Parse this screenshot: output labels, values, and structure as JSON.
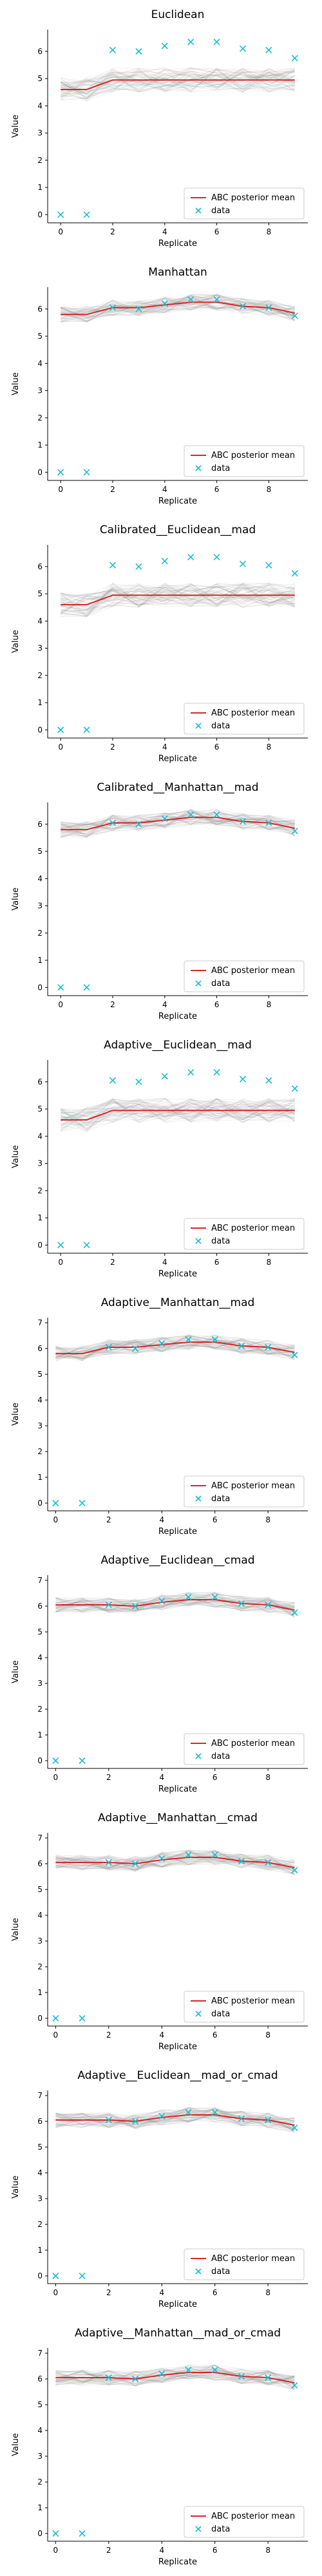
{
  "colors": {
    "mean_line": "#d62728",
    "data_marker": "#17becf",
    "bands": "#7f7f7f",
    "axis": "#000000",
    "legend_border": "#cccccc"
  },
  "legend": {
    "mean_label": "ABC posterior mean",
    "data_label": "data",
    "placement": "lower-right"
  },
  "chart_data": [
    {
      "type": "line",
      "title": "Euclidean",
      "xlabel": "Replicate",
      "ylabel": "Value",
      "xlim": [
        -0.5,
        9.5
      ],
      "ylim": [
        -0.3,
        6.8
      ],
      "xticks": [
        0,
        2,
        4,
        6,
        8
      ],
      "yticks": [
        0,
        1,
        2,
        3,
        4,
        5,
        6
      ],
      "x": [
        0,
        1,
        2,
        3,
        4,
        5,
        6,
        7,
        8,
        9
      ],
      "series": [
        {
          "name": "ABC posterior mean",
          "values": [
            4.6,
            4.6,
            4.95,
            4.95,
            4.95,
            4.95,
            4.95,
            4.95,
            4.95,
            4.95
          ],
          "spread": 0.45
        },
        {
          "name": "data",
          "values": [
            0,
            0,
            6.05,
            6.0,
            6.2,
            6.35,
            6.35,
            6.1,
            6.05,
            5.75
          ]
        }
      ]
    },
    {
      "type": "line",
      "title": "Manhattan",
      "xlabel": "Replicate",
      "ylabel": "Value",
      "xlim": [
        -0.5,
        9.5
      ],
      "ylim": [
        -0.3,
        6.8
      ],
      "xticks": [
        0,
        2,
        4,
        6,
        8
      ],
      "yticks": [
        0,
        1,
        2,
        3,
        4,
        5,
        6
      ],
      "x": [
        0,
        1,
        2,
        3,
        4,
        5,
        6,
        7,
        8,
        9
      ],
      "series": [
        {
          "name": "ABC posterior mean",
          "values": [
            5.8,
            5.8,
            6.05,
            6.05,
            6.15,
            6.25,
            6.25,
            6.1,
            6.05,
            5.85
          ],
          "spread": 0.3
        },
        {
          "name": "data",
          "values": [
            0,
            0,
            6.05,
            6.0,
            6.2,
            6.35,
            6.35,
            6.1,
            6.05,
            5.75
          ]
        }
      ]
    },
    {
      "type": "line",
      "title": "Calibrated__Euclidean__mad",
      "xlabel": "Replicate",
      "ylabel": "Value",
      "xlim": [
        -0.5,
        9.5
      ],
      "ylim": [
        -0.3,
        6.8
      ],
      "xticks": [
        0,
        2,
        4,
        6,
        8
      ],
      "yticks": [
        0,
        1,
        2,
        3,
        4,
        5,
        6
      ],
      "x": [
        0,
        1,
        2,
        3,
        4,
        5,
        6,
        7,
        8,
        9
      ],
      "series": [
        {
          "name": "ABC posterior mean",
          "values": [
            4.6,
            4.6,
            4.95,
            4.95,
            4.95,
            4.95,
            4.95,
            4.95,
            4.95,
            4.95
          ],
          "spread": 0.45
        },
        {
          "name": "data",
          "values": [
            0,
            0,
            6.05,
            6.0,
            6.2,
            6.35,
            6.35,
            6.1,
            6.05,
            5.75
          ]
        }
      ]
    },
    {
      "type": "line",
      "title": "Calibrated__Manhattan__mad",
      "xlabel": "Replicate",
      "ylabel": "Value",
      "xlim": [
        -0.5,
        9.5
      ],
      "ylim": [
        -0.3,
        6.8
      ],
      "xticks": [
        0,
        2,
        4,
        6,
        8
      ],
      "yticks": [
        0,
        1,
        2,
        3,
        4,
        5,
        6
      ],
      "x": [
        0,
        1,
        2,
        3,
        4,
        5,
        6,
        7,
        8,
        9
      ],
      "series": [
        {
          "name": "ABC posterior mean",
          "values": [
            5.8,
            5.8,
            6.05,
            6.05,
            6.15,
            6.25,
            6.25,
            6.1,
            6.05,
            5.85
          ],
          "spread": 0.3
        },
        {
          "name": "data",
          "values": [
            0,
            0,
            6.05,
            6.0,
            6.2,
            6.35,
            6.35,
            6.1,
            6.05,
            5.75
          ]
        }
      ]
    },
    {
      "type": "line",
      "title": "Adaptive__Euclidean__mad",
      "xlabel": "Replicate",
      "ylabel": "Value",
      "xlim": [
        -0.5,
        9.5
      ],
      "ylim": [
        -0.3,
        6.8
      ],
      "xticks": [
        0,
        2,
        4,
        6,
        8
      ],
      "yticks": [
        0,
        1,
        2,
        3,
        4,
        5,
        6
      ],
      "x": [
        0,
        1,
        2,
        3,
        4,
        5,
        6,
        7,
        8,
        9
      ],
      "series": [
        {
          "name": "ABC posterior mean",
          "values": [
            4.6,
            4.6,
            4.95,
            4.95,
            4.95,
            4.95,
            4.95,
            4.95,
            4.95,
            4.95
          ],
          "spread": 0.45
        },
        {
          "name": "data",
          "values": [
            0,
            0,
            6.05,
            6.0,
            6.2,
            6.35,
            6.35,
            6.1,
            6.05,
            5.75
          ]
        }
      ]
    },
    {
      "type": "line",
      "title": "Adaptive__Manhattan__mad",
      "xlabel": "Replicate",
      "ylabel": "Value",
      "xlim": [
        -0.3,
        9.5
      ],
      "ylim": [
        -0.3,
        7.2
      ],
      "xticks": [
        0,
        2,
        4,
        6,
        8
      ],
      "yticks": [
        0,
        1,
        2,
        3,
        4,
        5,
        6,
        7
      ],
      "x": [
        0,
        1,
        2,
        3,
        4,
        5,
        6,
        7,
        8,
        9
      ],
      "series": [
        {
          "name": "ABC posterior mean",
          "values": [
            5.8,
            5.8,
            6.05,
            6.05,
            6.15,
            6.25,
            6.25,
            6.1,
            6.05,
            5.85
          ],
          "spread": 0.3
        },
        {
          "name": "data",
          "values": [
            0,
            0,
            6.05,
            6.0,
            6.2,
            6.35,
            6.35,
            6.1,
            6.05,
            5.75
          ]
        }
      ]
    },
    {
      "type": "line",
      "title": "Adaptive__Euclidean__cmad",
      "xlabel": "Replicate",
      "ylabel": "Value",
      "xlim": [
        -0.3,
        9.5
      ],
      "ylim": [
        -0.3,
        7.2
      ],
      "xticks": [
        0,
        2,
        4,
        6,
        8
      ],
      "yticks": [
        0,
        1,
        2,
        3,
        4,
        5,
        6,
        7
      ],
      "x": [
        0,
        1,
        2,
        3,
        4,
        5,
        6,
        7,
        8,
        9
      ],
      "series": [
        {
          "name": "ABC posterior mean",
          "values": [
            6.05,
            6.05,
            6.05,
            6.0,
            6.15,
            6.25,
            6.25,
            6.1,
            6.05,
            5.85
          ],
          "spread": 0.3
        },
        {
          "name": "data",
          "values": [
            0,
            0,
            6.05,
            6.0,
            6.2,
            6.35,
            6.35,
            6.1,
            6.05,
            5.75
          ]
        }
      ]
    },
    {
      "type": "line",
      "title": "Adaptive__Manhattan__cmad",
      "xlabel": "Replicate",
      "ylabel": "Value",
      "xlim": [
        -0.3,
        9.5
      ],
      "ylim": [
        -0.3,
        7.2
      ],
      "xticks": [
        0,
        2,
        4,
        6,
        8
      ],
      "yticks": [
        0,
        1,
        2,
        3,
        4,
        5,
        6,
        7
      ],
      "x": [
        0,
        1,
        2,
        3,
        4,
        5,
        6,
        7,
        8,
        9
      ],
      "series": [
        {
          "name": "ABC posterior mean",
          "values": [
            6.05,
            6.05,
            6.05,
            6.0,
            6.15,
            6.25,
            6.25,
            6.1,
            6.05,
            5.85
          ],
          "spread": 0.3
        },
        {
          "name": "data",
          "values": [
            0,
            0,
            6.05,
            6.0,
            6.2,
            6.35,
            6.35,
            6.1,
            6.05,
            5.75
          ]
        }
      ]
    },
    {
      "type": "line",
      "title": "Adaptive__Euclidean__mad_or_cmad",
      "xlabel": "Replicate",
      "ylabel": "Value",
      "xlim": [
        -0.3,
        9.5
      ],
      "ylim": [
        -0.3,
        7.2
      ],
      "xticks": [
        0,
        2,
        4,
        6,
        8
      ],
      "yticks": [
        0,
        1,
        2,
        3,
        4,
        5,
        6,
        7
      ],
      "x": [
        0,
        1,
        2,
        3,
        4,
        5,
        6,
        7,
        8,
        9
      ],
      "series": [
        {
          "name": "ABC posterior mean",
          "values": [
            6.05,
            6.05,
            6.05,
            6.0,
            6.15,
            6.25,
            6.25,
            6.1,
            6.05,
            5.85
          ],
          "spread": 0.3
        },
        {
          "name": "data",
          "values": [
            0,
            0,
            6.05,
            6.0,
            6.2,
            6.35,
            6.35,
            6.1,
            6.05,
            5.75
          ]
        }
      ]
    },
    {
      "type": "line",
      "title": "Adaptive__Manhattan__mad_or_cmad",
      "xlabel": "Replicate",
      "ylabel": "Value",
      "xlim": [
        -0.3,
        9.5
      ],
      "ylim": [
        -0.3,
        7.2
      ],
      "xticks": [
        0,
        2,
        4,
        6,
        8
      ],
      "yticks": [
        0,
        1,
        2,
        3,
        4,
        5,
        6,
        7
      ],
      "x": [
        0,
        1,
        2,
        3,
        4,
        5,
        6,
        7,
        8,
        9
      ],
      "series": [
        {
          "name": "ABC posterior mean",
          "values": [
            6.05,
            6.05,
            6.05,
            6.0,
            6.15,
            6.25,
            6.25,
            6.1,
            6.05,
            5.85
          ],
          "spread": 0.3
        },
        {
          "name": "data",
          "values": [
            0,
            0,
            6.05,
            6.0,
            6.2,
            6.35,
            6.35,
            6.1,
            6.05,
            5.75
          ]
        }
      ]
    }
  ]
}
